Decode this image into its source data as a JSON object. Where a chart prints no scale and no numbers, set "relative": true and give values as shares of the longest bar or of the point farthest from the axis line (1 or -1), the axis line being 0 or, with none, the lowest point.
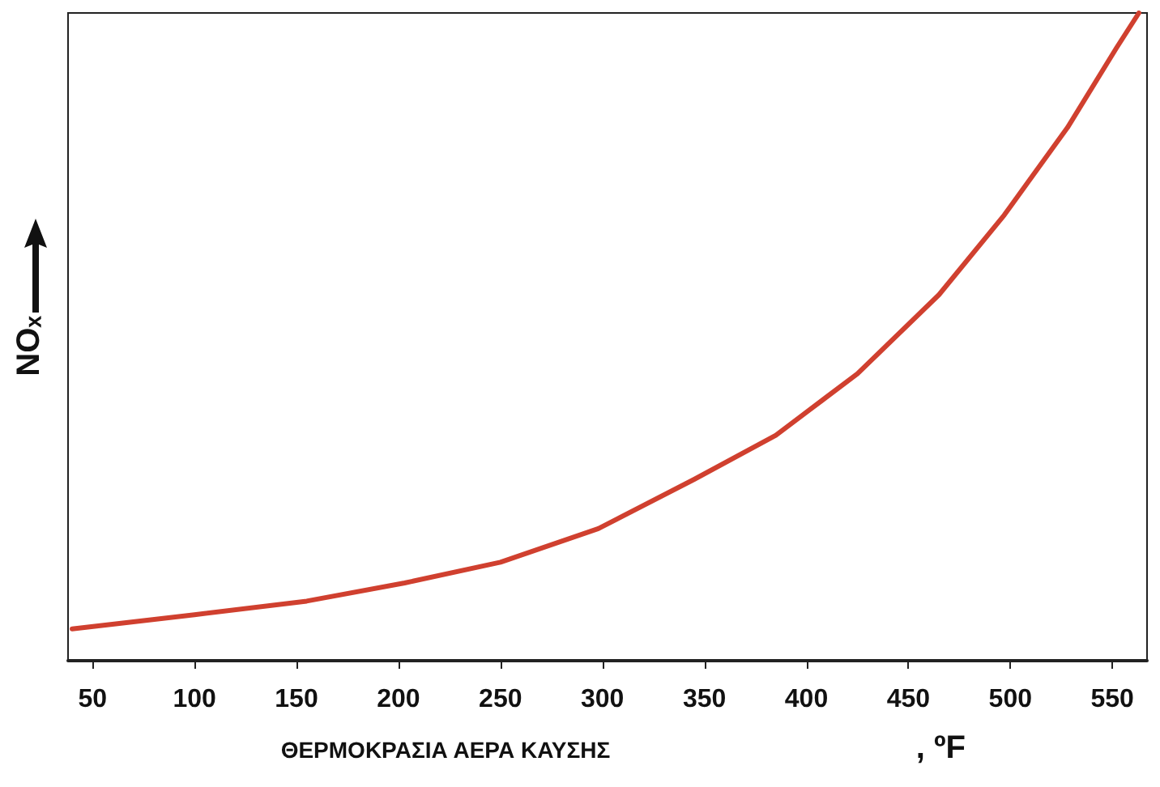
{
  "chart_data": {
    "type": "line",
    "xlabel": "ΘΕΡΜΟΚΡΑΣΙΑ ΑΕΡΑ ΚΑΥΣΗΣ",
    "ylabel": "NOₓ",
    "annotations": [
      ", ºF"
    ],
    "relative": true,
    "xlim": [
      38,
      567
    ],
    "xticks": [
      50,
      100,
      150,
      200,
      250,
      300,
      350,
      400,
      450,
      500,
      550
    ],
    "grid": false,
    "marker": "none",
    "line_style": "solid",
    "series": [
      {
        "color": "#d0402f",
        "x": [
          40,
          100,
          155,
          203,
          250,
          298,
          345,
          385,
          425,
          465,
          497,
          528,
          552,
          563
        ],
        "values": [
          0.049,
          0.071,
          0.092,
          0.12,
          0.152,
          0.204,
          0.28,
          0.348,
          0.443,
          0.565,
          0.688,
          0.823,
          0.946,
          1
        ]
      }
    ]
  }
}
